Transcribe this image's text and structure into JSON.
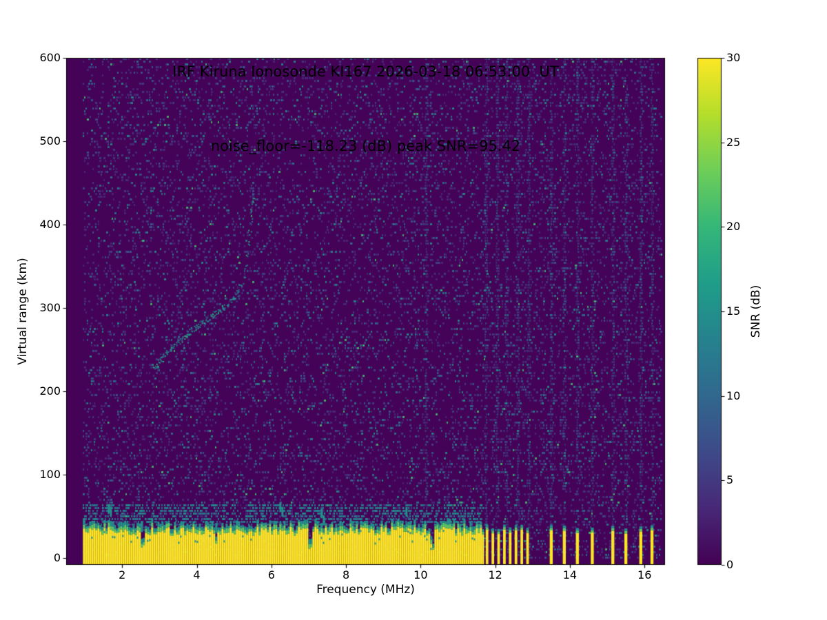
{
  "figure": {
    "title_line1": "IRF Kiruna Ionosonde KI167 2026-03-18 06:53:00  UT",
    "title_line2": "noise_floor=-118.23 (dB) peak SNR=95.42",
    "xlabel": "Frequency (MHz)",
    "ylabel": "Virtual range (km)",
    "colorbar_label": "SNR (dB)"
  },
  "chart_data": {
    "type": "heatmap",
    "title": "IRF Kiruna Ionosonde KI167 2026-03-18 06:53:00  UT",
    "subtitle": "noise_floor=-118.23 (dB) peak SNR=95.42",
    "station": "KI167",
    "timestamp_ut": "2026-03-18 06:53:00",
    "noise_floor_db": -118.23,
    "peak_snr_db": 95.42,
    "xlabel": "Frequency (MHz)",
    "ylabel": "Virtual range (km)",
    "xlim": [
      0.5,
      16.55
    ],
    "ylim": [
      -8,
      600
    ],
    "xticks": [
      2,
      4,
      6,
      8,
      10,
      12,
      14,
      16
    ],
    "yticks": [
      0,
      100,
      200,
      300,
      400,
      500,
      600
    ],
    "grid": false,
    "colorbar": {
      "label": "SNR (dB)",
      "min": 0,
      "max": 30,
      "ticks": [
        0,
        5,
        10,
        15,
        20,
        25,
        30
      ],
      "colormap": "viridis",
      "position": "right"
    },
    "colormap_stops": [
      [
        0,
        "#440154"
      ],
      [
        0.111,
        "#482878"
      ],
      [
        0.222,
        "#3e4a89"
      ],
      [
        0.333,
        "#31688e"
      ],
      [
        0.444,
        "#26828e"
      ],
      [
        0.556,
        "#1f9e89"
      ],
      [
        0.667,
        "#35b779"
      ],
      [
        0.778,
        "#6ece58"
      ],
      [
        0.889,
        "#b5de2b"
      ],
      [
        1,
        "#fde725"
      ]
    ],
    "background_color": "#440357",
    "features": {
      "data_freq_range_mhz": [
        0.95,
        16.45
      ],
      "ground_clutter_band": {
        "freq_start": 0.95,
        "freq_end": 11.68,
        "top_km_min": 27,
        "top_km_max": 38,
        "description": "solid saturated (yellow, ~30 dB) ground-return band from 0 km up to ~30-40 km spanning 1-11.7 MHz, capped by green/teal fuzz"
      },
      "clutter_notches_mhz": [
        2.55,
        4.5,
        7.0,
        10.3
      ],
      "clutter_spikes_mhz": [
        1.65,
        2.5,
        4.5,
        6.25,
        7.35,
        9.6
      ],
      "rfi_stripe_band": {
        "freq_start": 11.78,
        "freq_end": 13.0,
        "stripe_spacing_mhz": 0.155,
        "stripe_width_mhz": 0.07,
        "top_km": 32,
        "description": "regularly spaced intermittent clutter stripes between 11.8 and 13 MHz"
      },
      "sparse_stripes_mhz": [
        13.5,
        13.85,
        14.2,
        14.6,
        15.15,
        15.5,
        15.9,
        16.2
      ],
      "vertical_noise_streaks_mhz": [
        10.15,
        11.75,
        12.05,
        12.3,
        12.6,
        12.9,
        13.5,
        13.85,
        14.2,
        14.6,
        15.15,
        15.5,
        15.9,
        16.2
      ],
      "echo_trace_main": [
        [
          2.85,
          228
        ],
        [
          3.1,
          242
        ],
        [
          3.4,
          255
        ],
        [
          3.7,
          268
        ],
        [
          4.0,
          278
        ],
        [
          4.3,
          288
        ],
        [
          4.6,
          297
        ],
        [
          4.85,
          306
        ],
        [
          5.05,
          316
        ],
        [
          5.2,
          330
        ],
        [
          5.3,
          350
        ],
        [
          5.4,
          378
        ],
        [
          5.45,
          405
        ],
        [
          5.5,
          428
        ],
        [
          5.55,
          442
        ]
      ],
      "echo_trace_secondary": [
        [
          3.0,
          240
        ],
        [
          3.4,
          260
        ],
        [
          3.8,
          275
        ],
        [
          4.2,
          290
        ],
        [
          4.5,
          300
        ]
      ],
      "echo_patch_upper": [
        [
          5.85,
          355
        ],
        [
          5.95,
          370
        ],
        [
          6.1,
          388
        ]
      ],
      "noise_speckle_count": 13000
    },
    "render_seed": 1337
  }
}
